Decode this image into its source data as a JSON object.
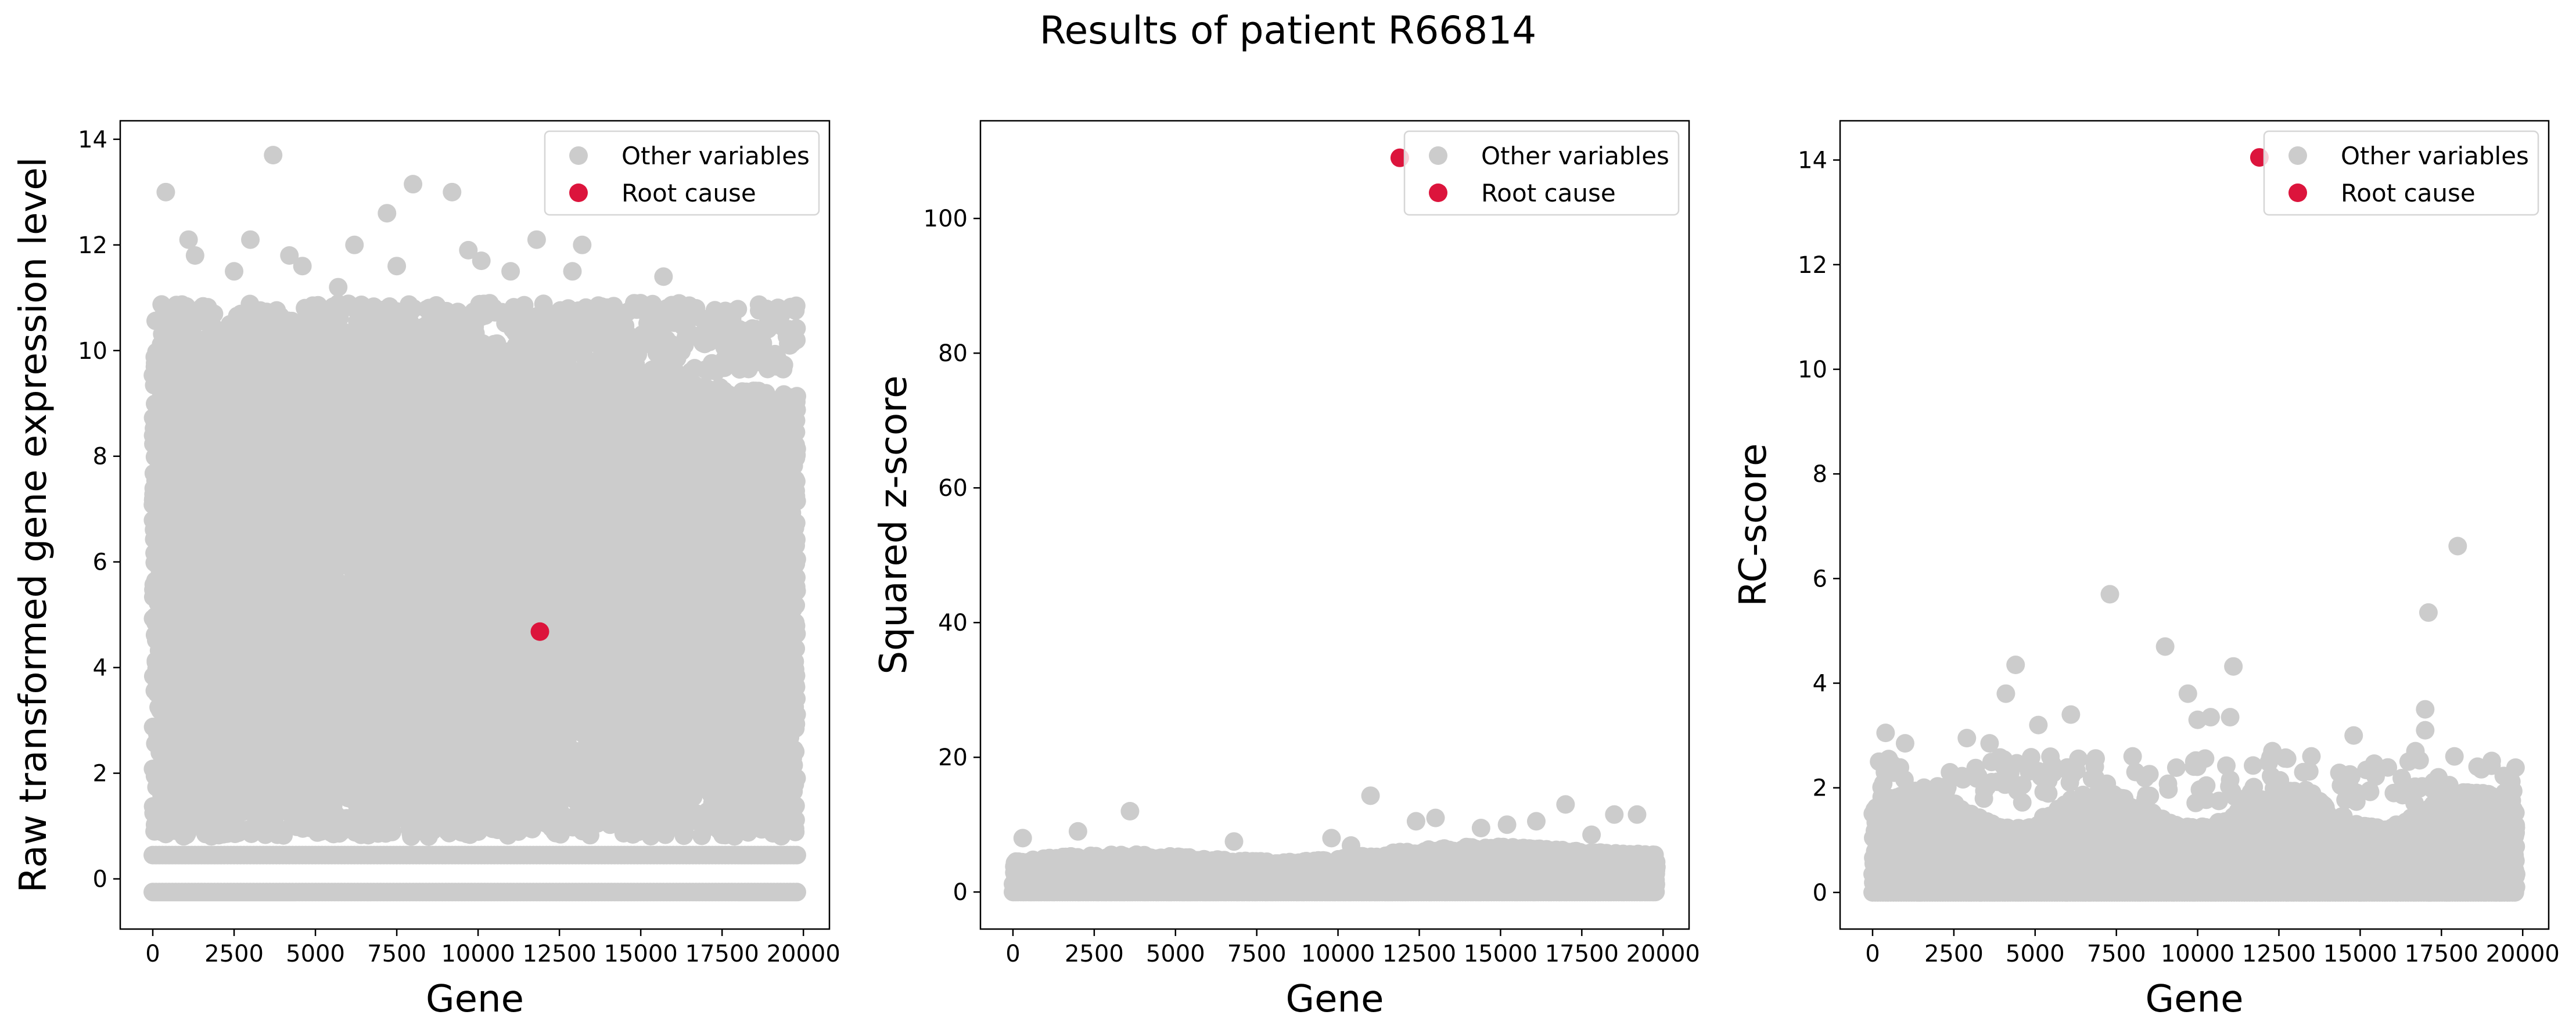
{
  "figure": {
    "title": "Results of patient R66814"
  },
  "colors": {
    "other": "#cccccc",
    "root": "#dc143c"
  },
  "chart_data": [
    {
      "type": "scatter",
      "title": "",
      "xlabel": "Gene",
      "ylabel": "Raw transformed gene expression level",
      "xlim": [
        -1000,
        20800
      ],
      "ylim": [
        -0.95,
        14.35
      ],
      "xticks": [
        0,
        2500,
        5000,
        7500,
        10000,
        12500,
        15000,
        17500,
        20000
      ],
      "yticks": [
        0,
        2,
        4,
        6,
        8,
        10,
        12,
        14
      ],
      "grid": false,
      "legend_position": "top-right",
      "series": [
        {
          "name": "Other variables",
          "color": "#cccccc",
          "distribution": "dense band: floor rows at -0.25 and 0.45, bulk from about 0.8 up to about 10.5 across genes 0-19800",
          "highlight_points": [
            [
              400,
              13.0
            ],
            [
              3700,
              13.7
            ],
            [
              8000,
              13.15
            ],
            [
              9200,
              13.0
            ],
            [
              1100,
              12.1
            ],
            [
              3000,
              12.1
            ],
            [
              7200,
              12.6
            ],
            [
              11800,
              12.1
            ],
            [
              6200,
              12.0
            ],
            [
              9700,
              11.9
            ],
            [
              13200,
              12.0
            ],
            [
              1300,
              11.8
            ],
            [
              4200,
              11.8
            ],
            [
              5700,
              11.2
            ],
            [
              7500,
              11.6
            ],
            [
              15700,
              11.4
            ],
            [
              12900,
              11.5
            ],
            [
              16700,
              10.8
            ],
            [
              17600,
              10.75
            ],
            [
              18900,
              10.5
            ],
            [
              2500,
              11.5
            ],
            [
              4600,
              11.6
            ],
            [
              10100,
              11.7
            ],
            [
              11000,
              11.5
            ]
          ]
        },
        {
          "name": "Root cause",
          "color": "#dc143c",
          "points": [
            [
              11900,
              4.68
            ]
          ]
        }
      ]
    },
    {
      "type": "scatter",
      "title": "",
      "xlabel": "Gene",
      "ylabel": "Squared z-score",
      "xlim": [
        -1000,
        20800
      ],
      "ylim": [
        -5.5,
        114.5
      ],
      "xticks": [
        0,
        2500,
        5000,
        7500,
        10000,
        12500,
        15000,
        17500,
        20000
      ],
      "yticks": [
        0,
        20,
        40,
        60,
        80,
        100
      ],
      "grid": false,
      "legend_position": "top-right",
      "series": [
        {
          "name": "Other variables",
          "color": "#cccccc",
          "distribution": "dense band from 0 up to about 6-8 across genes 0-19800",
          "highlight_points": [
            [
              11000,
              14.3
            ],
            [
              3600,
              12.0
            ],
            [
              17000,
              13.0
            ],
            [
              2000,
              9.0
            ],
            [
              13000,
              11.0
            ],
            [
              15200,
              10.0
            ],
            [
              18500,
              11.5
            ],
            [
              19200,
              11.5
            ],
            [
              16100,
              10.5
            ],
            [
              12400,
              10.5
            ],
            [
              14400,
              9.5
            ],
            [
              300,
              8.0
            ],
            [
              6800,
              7.5
            ],
            [
              9800,
              8.0
            ],
            [
              10400,
              6.9
            ],
            [
              17800,
              8.5
            ]
          ]
        },
        {
          "name": "Root cause",
          "color": "#dc143c",
          "points": [
            [
              11900,
              109.0
            ]
          ]
        }
      ]
    },
    {
      "type": "scatter",
      "title": "",
      "xlabel": "Gene",
      "ylabel": "RC-score",
      "xlim": [
        -1000,
        20800
      ],
      "ylim": [
        -0.7,
        14.75
      ],
      "xticks": [
        0,
        2500,
        5000,
        7500,
        10000,
        12500,
        15000,
        17500,
        20000
      ],
      "yticks": [
        0,
        2,
        4,
        6,
        8,
        10,
        12,
        14
      ],
      "grid": false,
      "legend_position": "top-right",
      "series": [
        {
          "name": "Other variables",
          "color": "#cccccc",
          "distribution": "dense band from 0 up to about 1.5-2 across genes 0-19800",
          "highlight_points": [
            [
              18000,
              6.62
            ],
            [
              7300,
              5.7
            ],
            [
              17100,
              5.35
            ],
            [
              9000,
              4.7
            ],
            [
              4400,
              4.35
            ],
            [
              11100,
              4.32
            ],
            [
              4100,
              3.8
            ],
            [
              9700,
              3.8
            ],
            [
              17000,
              3.5
            ],
            [
              6100,
              3.4
            ],
            [
              10400,
              3.35
            ],
            [
              11000,
              3.35
            ],
            [
              10000,
              3.3
            ],
            [
              5100,
              3.2
            ],
            [
              17000,
              3.1
            ],
            [
              400,
              3.05
            ],
            [
              14800,
              3.0
            ],
            [
              2900,
              2.95
            ],
            [
              1000,
              2.85
            ],
            [
              3600,
              2.85
            ],
            [
              16700,
              2.7
            ],
            [
              13500,
              2.6
            ],
            [
              8000,
              2.6
            ],
            [
              12300,
              2.7
            ],
            [
              17900,
              2.6
            ],
            [
              200,
              2.5
            ],
            [
              600,
              2.45
            ]
          ]
        },
        {
          "name": "Root cause",
          "color": "#dc143c",
          "points": [
            [
              11900,
              14.05
            ]
          ]
        }
      ]
    }
  ]
}
